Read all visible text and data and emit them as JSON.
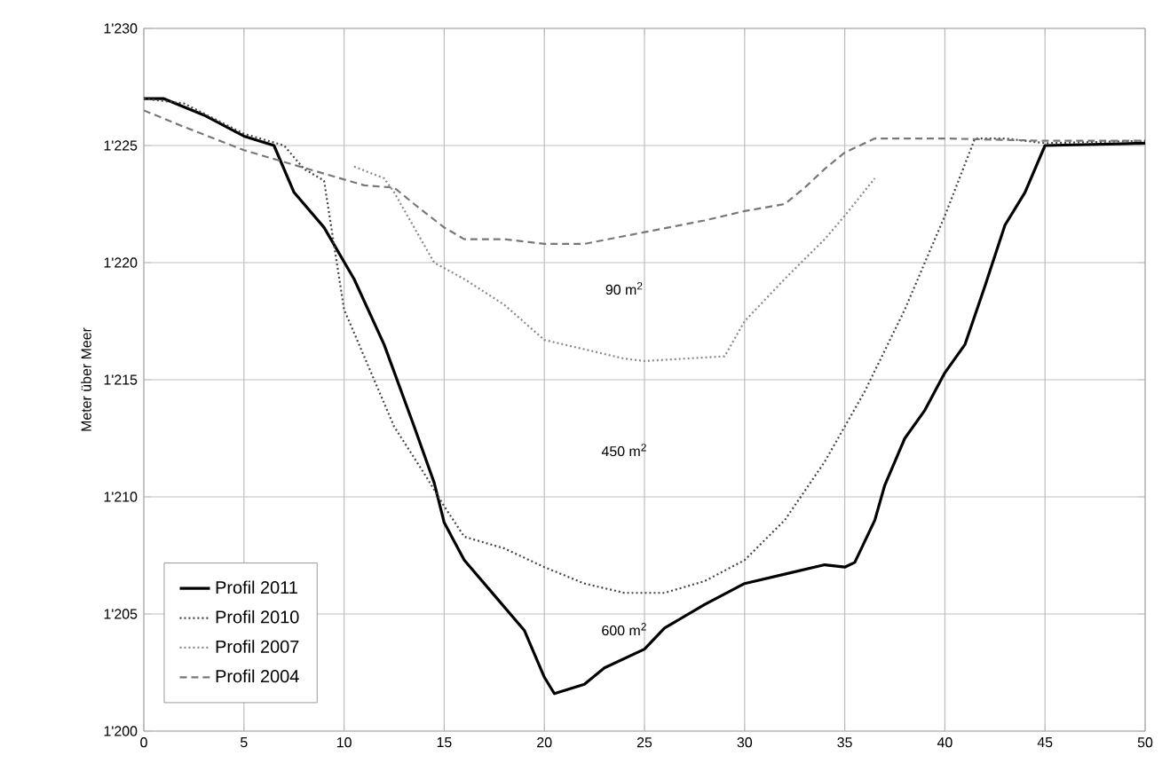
{
  "chart_data": {
    "type": "line",
    "ylabel": "Meter über Meer",
    "xlim": [
      0,
      50
    ],
    "ylim": [
      1200,
      1230
    ],
    "xticks": [
      0,
      5,
      10,
      15,
      20,
      25,
      30,
      35,
      40,
      45,
      50
    ],
    "yticks": [
      {
        "value": 1200,
        "label": "1'200"
      },
      {
        "value": 1205,
        "label": "1'205"
      },
      {
        "value": 1210,
        "label": "1'210"
      },
      {
        "value": 1215,
        "label": "1'215"
      },
      {
        "value": 1220,
        "label": "1'220"
      },
      {
        "value": 1225,
        "label": "1'225"
      },
      {
        "value": 1230,
        "label": "1'230"
      }
    ],
    "grid": true,
    "legend": "bottom left",
    "marker": "none",
    "series": [
      {
        "name": "Profil 2011",
        "color": "#000000",
        "line_style": "solid",
        "x": [
          0,
          1,
          3,
          5,
          6.5,
          7.5,
          9,
          10.5,
          12,
          13.5,
          14.5,
          15,
          16,
          17.5,
          19,
          20,
          20.5,
          22,
          23,
          25,
          26,
          28,
          30,
          32,
          34,
          35,
          35.5,
          36.5,
          37,
          38,
          39,
          40,
          41,
          42,
          43,
          44,
          45,
          50
        ],
        "values": [
          1227,
          1227,
          1226.3,
          1225.4,
          1225,
          1223,
          1221.5,
          1219.3,
          1216.5,
          1213,
          1210.6,
          1208.9,
          1207.3,
          1205.8,
          1204.3,
          1202.3,
          1201.6,
          1202,
          1202.7,
          1203.5,
          1204.4,
          1205.4,
          1206.3,
          1206.7,
          1207.1,
          1207,
          1207.2,
          1209,
          1210.5,
          1212.5,
          1213.7,
          1215.3,
          1216.5,
          1219,
          1221.6,
          1223,
          1225,
          1225.1
        ]
      },
      {
        "name": "Profil 2010",
        "color": "#444444",
        "line_style": "dotted",
        "x": [
          0,
          2,
          5,
          7,
          8,
          9,
          10,
          11,
          12.5,
          14,
          15,
          16,
          18,
          20,
          22,
          24,
          26,
          28,
          30,
          32,
          34,
          36,
          38,
          40,
          41.5,
          43,
          45,
          50
        ],
        "values": [
          1227,
          1226.8,
          1225.5,
          1225,
          1224,
          1223.5,
          1218,
          1216,
          1213,
          1211,
          1209.6,
          1208.3,
          1207.8,
          1207,
          1206.3,
          1205.9,
          1205.9,
          1206.4,
          1207.3,
          1209,
          1211.5,
          1214.5,
          1218,
          1222,
          1225.3,
          1225.3,
          1225.1,
          1225.2
        ]
      },
      {
        "name": "Profil 2007",
        "color": "#888888",
        "line_style": "dotted",
        "x": [
          10.5,
          12,
          12.5,
          13.5,
          14.5,
          16,
          18,
          20,
          22,
          24,
          25,
          27,
          29,
          30,
          32,
          34,
          35,
          36.5
        ],
        "values": [
          1224.1,
          1223.6,
          1223,
          1221.5,
          1220,
          1219.3,
          1218.2,
          1216.7,
          1216.3,
          1215.9,
          1215.8,
          1215.9,
          1216,
          1217.5,
          1219.3,
          1221,
          1222,
          1223.6
        ]
      },
      {
        "name": "Profil 2004",
        "color": "#777777",
        "line_style": "dashed",
        "x": [
          0,
          2,
          5,
          7,
          9,
          11,
          12.5,
          13.5,
          15,
          16,
          18,
          20,
          22,
          25,
          28,
          30,
          32,
          33,
          34,
          35,
          36.5,
          40,
          45,
          50
        ],
        "values": [
          1226.5,
          1225.8,
          1224.8,
          1224.3,
          1223.8,
          1223.3,
          1223.2,
          1222.5,
          1221.5,
          1221,
          1221,
          1220.8,
          1220.8,
          1221.3,
          1221.8,
          1222.2,
          1222.5,
          1223.2,
          1224,
          1224.7,
          1225.3,
          1225.3,
          1225.2,
          1225.2
        ]
      }
    ],
    "annotations": [
      "90 m$^{2}$",
      "450 m$^{2}$",
      "600 m$^{2}$"
    ]
  }
}
